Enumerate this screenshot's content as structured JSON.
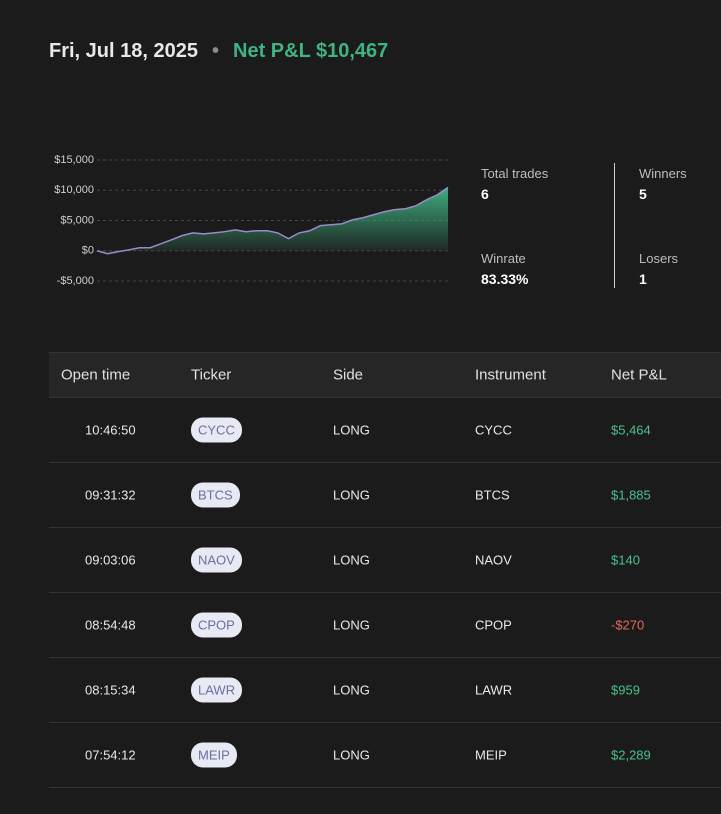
{
  "header": {
    "date": "Fri, Jul 18, 2025",
    "net_pnl_label": "Net P&L",
    "net_pnl": "$10,467"
  },
  "chart_data": {
    "type": "area",
    "color": "#3fb483",
    "line_color": "#9a8cc8",
    "grid": true,
    "ylim": [
      -5000,
      15000
    ],
    "yticks": [
      {
        "value": 15000,
        "label": "$15,000"
      },
      {
        "value": 10000,
        "label": "$10,000"
      },
      {
        "value": 5000,
        "label": "$5,000"
      },
      {
        "value": 0,
        "label": "$0"
      },
      {
        "value": -5000,
        "label": "-$5,000"
      }
    ],
    "values": [
      0,
      -500,
      -150,
      150,
      500,
      500,
      1150,
      1800,
      2500,
      2950,
      2800,
      2950,
      3150,
      3450,
      3150,
      3300,
      3300,
      2950,
      2000,
      2950,
      3300,
      4150,
      4300,
      4450,
      5100,
      5450,
      5950,
      6450,
      6800,
      6950,
      7450,
      8450,
      9250,
      10467
    ]
  },
  "stats": [
    {
      "label": "Total trades",
      "value": "6"
    },
    {
      "label": "Winners",
      "value": "5"
    },
    {
      "label": "Winrate",
      "value": "83.33%"
    },
    {
      "label": "Losers",
      "value": "1"
    }
  ],
  "table": {
    "columns": [
      "Open time",
      "Ticker",
      "Side",
      "Instrument",
      "Net P&L"
    ],
    "rows": [
      [
        "10:46:50",
        "CYCC",
        "LONG",
        "CYCC",
        "$5,464"
      ],
      [
        "09:31:32",
        "BTCS",
        "LONG",
        "BTCS",
        "$1,885"
      ],
      [
        "09:03:06",
        "NAOV",
        "LONG",
        "NAOV",
        "$140"
      ],
      [
        "08:54:48",
        "CPOP",
        "LONG",
        "CPOP",
        "-$270"
      ],
      [
        "08:15:34",
        "LAWR",
        "LONG",
        "LAWR",
        "$959"
      ],
      [
        "07:54:12",
        "MEIP",
        "LONG",
        "MEIP",
        "$2,289"
      ]
    ]
  }
}
